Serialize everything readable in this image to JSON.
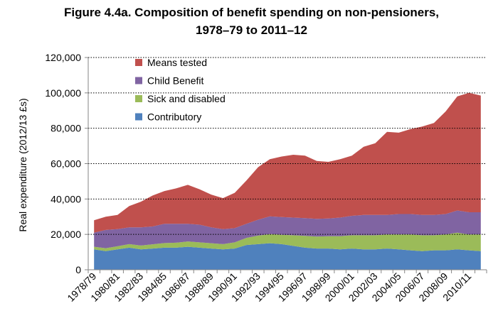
{
  "chart_data": {
    "type": "area",
    "title_line1": "Figure 4.4a. Composition of benefit spending on non-pensioners,",
    "title_line2": "1978–79 to 2011–12",
    "ylabel": "Real expenditure (2012/13 £s)",
    "xlabel": "",
    "ylim": [
      0,
      120000
    ],
    "yticks": [
      "0",
      "20,000",
      "40,000",
      "60,000",
      "80,000",
      "100,000",
      "120,000"
    ],
    "ytick_values": [
      0,
      20000,
      40000,
      60000,
      80000,
      100000,
      120000
    ],
    "grid": "horizontal dotted",
    "legend_position": "top-left",
    "stacked": true,
    "categories": [
      "1978/79",
      "1979/80",
      "1980/81",
      "1981/82",
      "1982/83",
      "1983/84",
      "1984/85",
      "1985/86",
      "1986/87",
      "1987/88",
      "1988/89",
      "1989/90",
      "1990/91",
      "1991/92",
      "1992/93",
      "1993/94",
      "1994/95",
      "1995/96",
      "1996/97",
      "1997/98",
      "1998/99",
      "1999/00",
      "2000/01",
      "2001/02",
      "2002/03",
      "2003/04",
      "2004/05",
      "2005/06",
      "2006/07",
      "2007/08",
      "2008/09",
      "2009/10",
      "2010/11",
      "2011/12"
    ],
    "labeled_categories": [
      "1978/79",
      "1980/81",
      "1982/83",
      "1984/85",
      "1986/87",
      "1988/89",
      "1990/91",
      "1992/93",
      "1994/95",
      "1996/97",
      "1998/99",
      "2000/01",
      "2002/03",
      "2004/05",
      "2006/07",
      "2008/09",
      "2010/11"
    ],
    "series": [
      {
        "name": "Contributory",
        "color": "#4f81bd",
        "values": [
          11500,
          10500,
          11500,
          12500,
          11500,
          12000,
          12500,
          12500,
          13000,
          12500,
          12000,
          11500,
          12000,
          14000,
          14500,
          15000,
          14500,
          13500,
          12500,
          12000,
          12000,
          11500,
          12000,
          11500,
          11500,
          12000,
          11500,
          11000,
          10500,
          11000,
          11000,
          11500,
          11000,
          10500
        ]
      },
      {
        "name": "Sick and disabled",
        "color": "#9bbb59",
        "values": [
          1500,
          1700,
          1800,
          2000,
          2200,
          2400,
          2600,
          2800,
          3000,
          3000,
          3000,
          3000,
          3500,
          4000,
          4800,
          5200,
          5300,
          6000,
          6700,
          6800,
          7000,
          7500,
          7500,
          8000,
          8000,
          8000,
          8500,
          9000,
          9000,
          8500,
          9000,
          9500,
          9000,
          9500
        ]
      },
      {
        "name": "Child Benefit",
        "color": "#8064a2",
        "values": [
          8000,
          10300,
          9700,
          9500,
          10300,
          10100,
          10900,
          10700,
          10000,
          10000,
          9000,
          8500,
          8000,
          8000,
          9000,
          10000,
          10000,
          10000,
          10000,
          10000,
          10000,
          10500,
          11000,
          11500,
          11500,
          11000,
          11500,
          11500,
          11500,
          11500,
          11500,
          12500,
          12500,
          12500
        ]
      },
      {
        "name": "Means tested",
        "color": "#c0504d",
        "values": [
          7000,
          7500,
          8000,
          12000,
          14500,
          17500,
          18500,
          20000,
          22000,
          20000,
          18500,
          17500,
          20000,
          24500,
          29700,
          32300,
          34200,
          35500,
          35300,
          32700,
          32000,
          33000,
          34000,
          38500,
          40500,
          47000,
          46000,
          48000,
          50000,
          52000,
          58000,
          64500,
          67500,
          66000
        ]
      }
    ],
    "legend_order": [
      "Means tested",
      "Child Benefit",
      "Sick and disabled",
      "Contributory"
    ]
  }
}
